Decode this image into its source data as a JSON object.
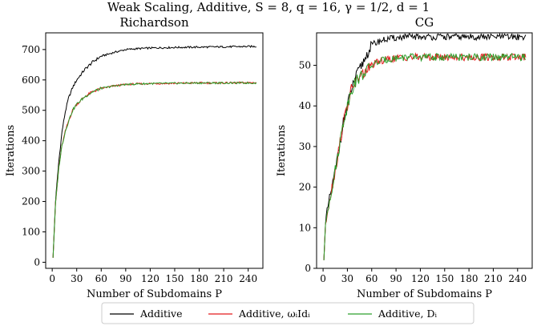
{
  "figure": {
    "suptitle": "Weak Scaling, Additive, S = 8, q = 16, γ = 1/2, d = 1"
  },
  "legend": {
    "entries": [
      {
        "label": "Additive",
        "color": "#000000"
      },
      {
        "label": "Additive, ωᵢIdᵢ",
        "color": "#e41a1c"
      },
      {
        "label": "Additive, Dᵢ",
        "color": "#2ca02c"
      }
    ]
  },
  "chart_data": [
    {
      "type": "line",
      "title": "Richardson",
      "xlabel": "Number of Subdomains P",
      "ylabel": "Iterations",
      "xlim": [
        -8,
        258
      ],
      "ylim": [
        -20,
        755
      ],
      "xticks": [
        0,
        30,
        60,
        90,
        120,
        150,
        180,
        210,
        240
      ],
      "yticks": [
        0,
        100,
        200,
        300,
        400,
        500,
        600,
        700
      ],
      "series": [
        {
          "name": "Additive",
          "color": "#000000",
          "x": [
            1,
            4,
            8,
            12,
            16,
            20,
            25,
            30,
            40,
            50,
            60,
            75,
            90,
            105,
            120,
            150,
            180,
            210,
            240,
            250
          ],
          "y": [
            15,
            200,
            330,
            430,
            495,
            540,
            575,
            600,
            635,
            660,
            678,
            690,
            700,
            703,
            705,
            707,
            708,
            709,
            710,
            710
          ]
        },
        {
          "name": "Additive, ωᵢIdᵢ",
          "color": "#e41a1c",
          "x": [
            1,
            4,
            8,
            12,
            16,
            20,
            25,
            30,
            40,
            50,
            60,
            75,
            90,
            105,
            120,
            150,
            180,
            210,
            240,
            250
          ],
          "y": [
            15,
            190,
            310,
            385,
            430,
            465,
            500,
            520,
            545,
            562,
            572,
            580,
            585,
            587,
            588,
            589,
            590,
            590,
            591,
            591
          ]
        },
        {
          "name": "Additive, Dᵢ",
          "color": "#2ca02c",
          "x": [
            1,
            4,
            8,
            12,
            16,
            20,
            25,
            30,
            40,
            50,
            60,
            75,
            90,
            105,
            120,
            150,
            180,
            210,
            240,
            250
          ],
          "y": [
            15,
            190,
            310,
            385,
            430,
            465,
            500,
            520,
            545,
            562,
            572,
            580,
            585,
            587,
            588,
            589,
            590,
            590,
            590,
            590
          ]
        }
      ]
    },
    {
      "type": "line",
      "title": "CG",
      "xlabel": "Number of Subdomains P",
      "ylabel": "Iterations",
      "xlim": [
        -8,
        258
      ],
      "ylim": [
        0,
        58
      ],
      "xticks": [
        0,
        30,
        60,
        90,
        120,
        150,
        180,
        210,
        240
      ],
      "yticks": [
        0,
        10,
        20,
        30,
        40,
        50
      ],
      "series": [
        {
          "name": "Additive",
          "color": "#000000",
          "x": [
            1,
            3,
            6,
            10,
            15,
            20,
            25,
            30,
            35,
            40,
            45,
            50,
            55,
            60,
            70,
            80,
            100,
            120,
            150,
            180,
            210,
            240,
            250
          ],
          "y": [
            2,
            11,
            15,
            19,
            24,
            30,
            36,
            40,
            44,
            47,
            49,
            51,
            53,
            55,
            56,
            56.5,
            57,
            57,
            57,
            57,
            57,
            57,
            57
          ]
        },
        {
          "name": "Additive, ωᵢIdᵢ",
          "color": "#e41a1c",
          "x": [
            1,
            3,
            6,
            10,
            15,
            20,
            25,
            30,
            35,
            40,
            45,
            50,
            55,
            60,
            70,
            80,
            100,
            120,
            150,
            180,
            210,
            240,
            250
          ],
          "y": [
            2,
            11,
            15,
            19,
            24,
            30,
            36,
            40,
            44,
            46,
            47,
            48,
            49,
            50,
            51,
            51.5,
            52,
            52,
            52,
            52,
            52,
            52,
            52
          ]
        },
        {
          "name": "Additive, Dᵢ",
          "color": "#2ca02c",
          "x": [
            1,
            3,
            6,
            10,
            15,
            20,
            25,
            30,
            35,
            40,
            45,
            50,
            55,
            60,
            70,
            80,
            100,
            120,
            150,
            180,
            210,
            240,
            250
          ],
          "y": [
            2,
            11,
            15,
            19,
            24,
            30,
            36,
            40,
            44,
            46,
            47,
            48,
            49,
            50,
            51,
            51.5,
            52,
            52,
            52,
            52,
            52,
            52,
            52
          ]
        }
      ]
    }
  ]
}
